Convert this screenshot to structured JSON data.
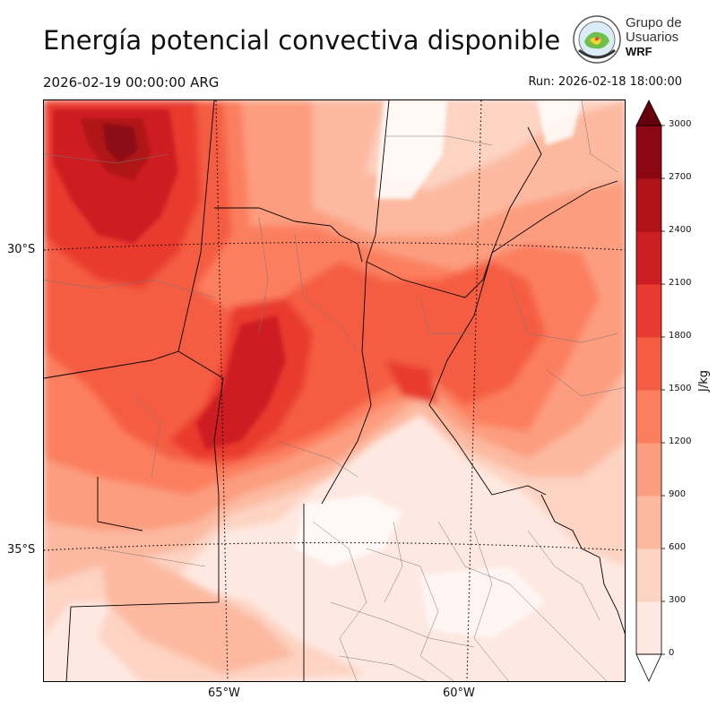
{
  "header": {
    "title": "Energía potencial convectiva disponible",
    "valid_time": "2026-02-19 00:00:00 ARG",
    "run_time": "Run: 2026-02-18 18:00:00"
  },
  "logo": {
    "line1": "Grupo de",
    "line2": "Usuarios",
    "line3": "WRF"
  },
  "map": {
    "lat_labels": [
      "30°S",
      "35°S"
    ],
    "lon_labels": [
      "65°W",
      "60°W"
    ]
  },
  "colorbar": {
    "units": "J/kg",
    "ticks": [
      "0",
      "300",
      "600",
      "900",
      "1200",
      "1500",
      "1800",
      "2100",
      "2400",
      "2700",
      "3000"
    ],
    "colors": [
      "#fee9e2",
      "#fdd3c2",
      "#fcb9a0",
      "#fc9d7f",
      "#fb7f5f",
      "#f55d43",
      "#e83a2f",
      "#cd1f23",
      "#b01219",
      "#8b0812",
      "#67000d"
    ]
  }
}
